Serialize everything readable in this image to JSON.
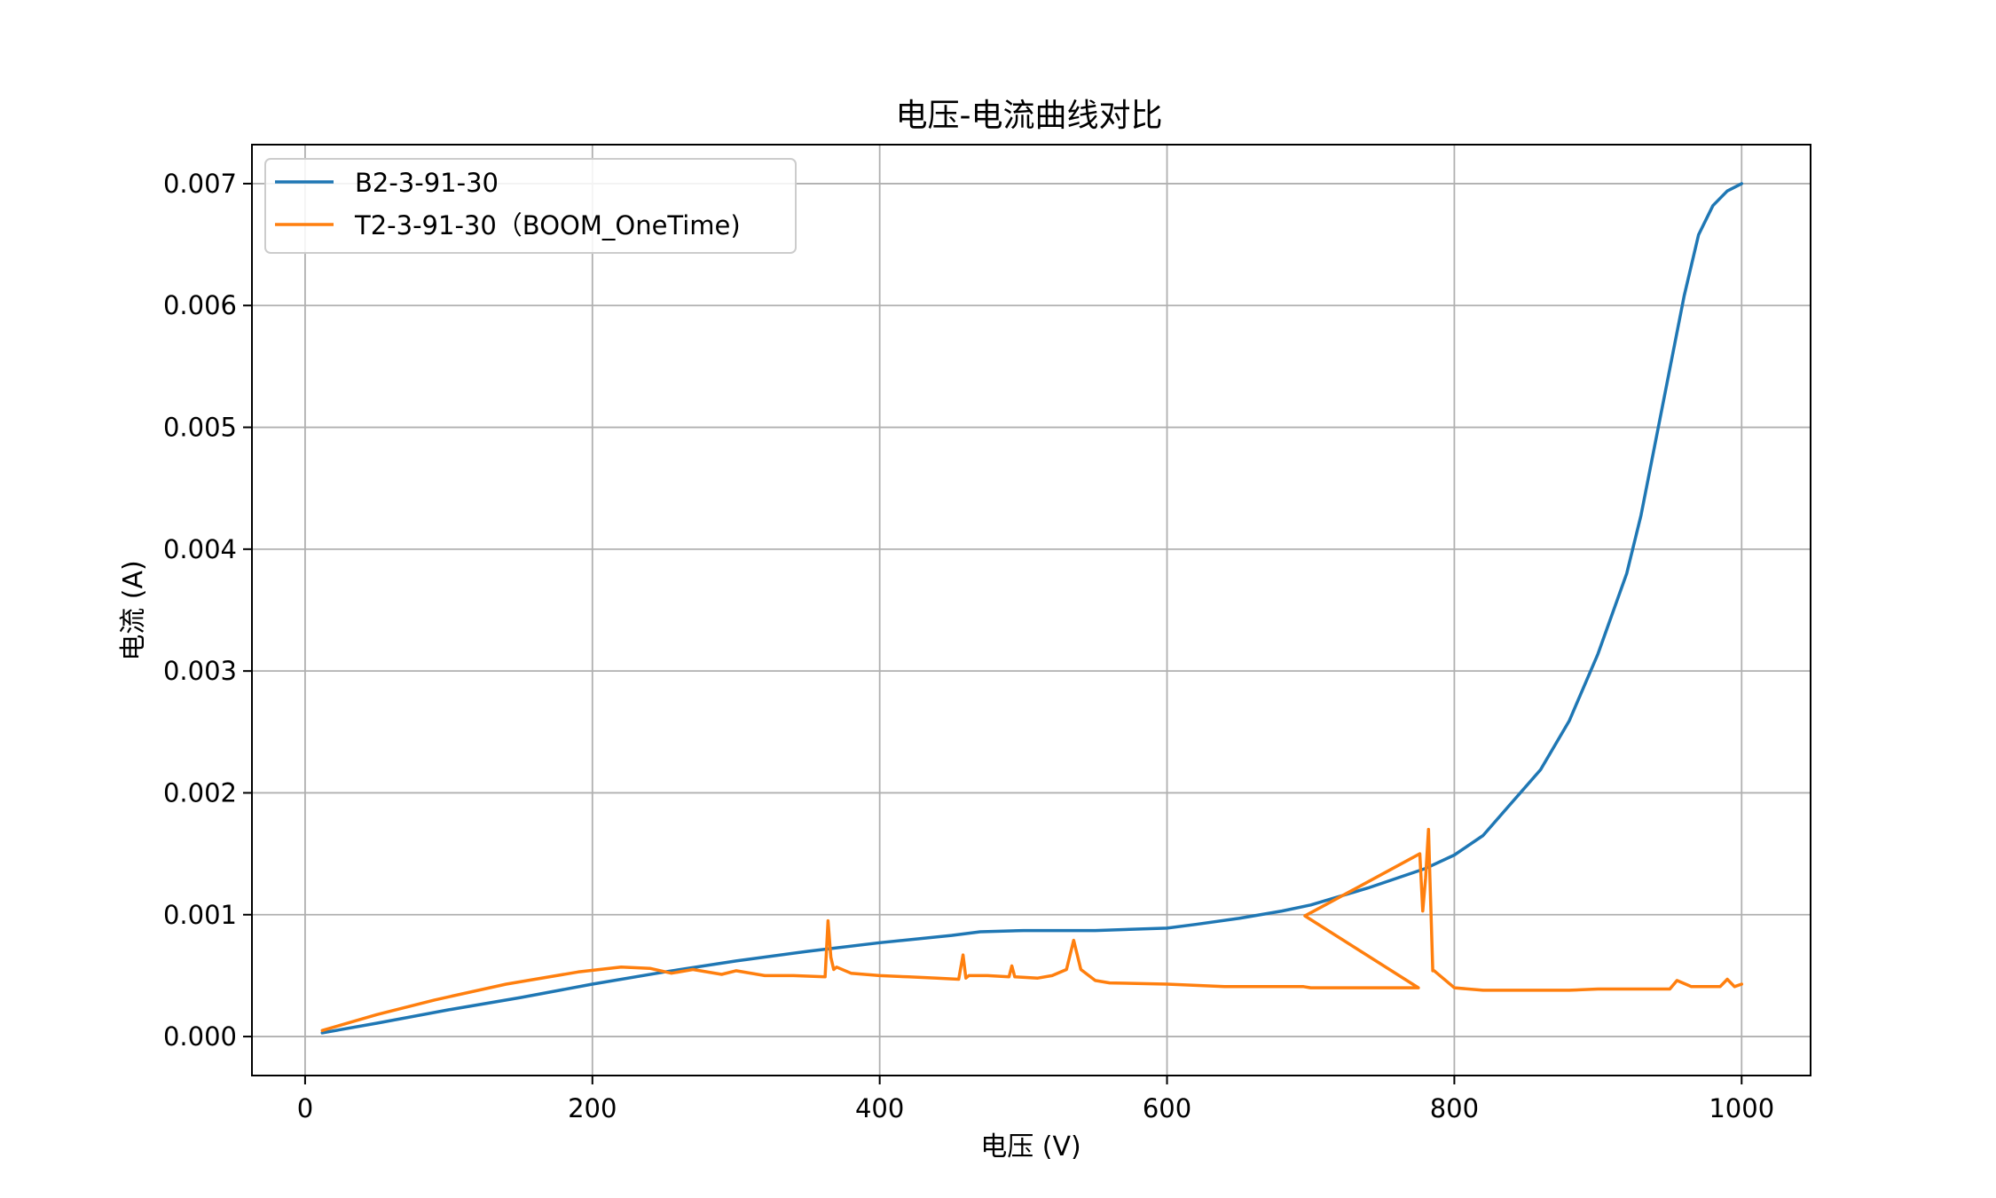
{
  "chart_data": {
    "type": "line",
    "title": "电压-电流曲线对比",
    "xlabel": "电压 (V)",
    "ylabel": "电流 (A)",
    "xlim": [
      -37,
      1048
    ],
    "ylim": [
      -0.00032,
      0.00732
    ],
    "xticks": [
      0,
      200,
      400,
      600,
      800,
      1000
    ],
    "xtick_labels": [
      "0",
      "200",
      "400",
      "600",
      "800",
      "1000"
    ],
    "yticks": [
      0.0,
      0.001,
      0.002,
      0.003,
      0.004,
      0.005,
      0.006,
      0.007
    ],
    "ytick_labels": [
      "0.000",
      "0.001",
      "0.002",
      "0.003",
      "0.004",
      "0.005",
      "0.006",
      "0.007"
    ],
    "grid": true,
    "legend_position": "upper-left",
    "series": [
      {
        "name": "B2-3-91-30",
        "color": "#1f77b4",
        "x": [
          12,
          50,
          100,
          150,
          200,
          250,
          300,
          350,
          400,
          450,
          470,
          500,
          520,
          550,
          600,
          620,
          650,
          680,
          700,
          720,
          740,
          760,
          780,
          800,
          820,
          840,
          860,
          880,
          900,
          920,
          930,
          940,
          950,
          960,
          970,
          980,
          990,
          1000
        ],
        "y": [
          3e-05,
          0.00011,
          0.00022,
          0.00032,
          0.00043,
          0.00053,
          0.00062,
          0.0007,
          0.00077,
          0.00083,
          0.00086,
          0.00087,
          0.00087,
          0.00087,
          0.00089,
          0.00092,
          0.00097,
          0.00103,
          0.00108,
          0.00115,
          0.00122,
          0.0013,
          0.00138,
          0.00149,
          0.00165,
          0.00192,
          0.00219,
          0.00259,
          0.00314,
          0.0038,
          0.00428,
          0.00488,
          0.00548,
          0.00608,
          0.00658,
          0.00682,
          0.00694,
          0.007
        ]
      },
      {
        "name": "T2-3-91-30（BOOM_OneTime)",
        "color": "#ff7f0e",
        "x": [
          12,
          50,
          90,
          140,
          190,
          220,
          240,
          255,
          270,
          290,
          300,
          320,
          340,
          362,
          364,
          366,
          368,
          370,
          380,
          400,
          420,
          440,
          455,
          458,
          460,
          462,
          475,
          490,
          492,
          494,
          510,
          520,
          530,
          535,
          540,
          550,
          560,
          600,
          640,
          680,
          695,
          700,
          720,
          740,
          760,
          770,
          775,
          696,
          776,
          778,
          780,
          782,
          783,
          785,
          786,
          790,
          800,
          820,
          850,
          880,
          900,
          930,
          950,
          955,
          965,
          975,
          985,
          990,
          995,
          1000
        ],
        "y": [
          5e-05,
          0.00018,
          0.0003,
          0.00043,
          0.00053,
          0.00057,
          0.00056,
          0.00052,
          0.00055,
          0.00051,
          0.00054,
          0.0005,
          0.0005,
          0.00049,
          0.00095,
          0.00065,
          0.00055,
          0.00057,
          0.00052,
          0.0005,
          0.00049,
          0.00048,
          0.00047,
          0.00067,
          0.00048,
          0.0005,
          0.0005,
          0.00049,
          0.00058,
          0.00049,
          0.00048,
          0.0005,
          0.00055,
          0.00079,
          0.00055,
          0.00046,
          0.00044,
          0.00043,
          0.00041,
          0.00041,
          0.00041,
          0.0004,
          0.0004,
          0.0004,
          0.0004,
          0.0004,
          0.0004,
          0.00099,
          0.0015,
          0.00103,
          0.0013,
          0.0017,
          0.0013,
          0.00054,
          0.00054,
          0.0005,
          0.0004,
          0.00038,
          0.00038,
          0.00038,
          0.00039,
          0.00039,
          0.00039,
          0.00046,
          0.00041,
          0.00041,
          0.00041,
          0.00047,
          0.00041,
          0.00043
        ]
      }
    ]
  }
}
